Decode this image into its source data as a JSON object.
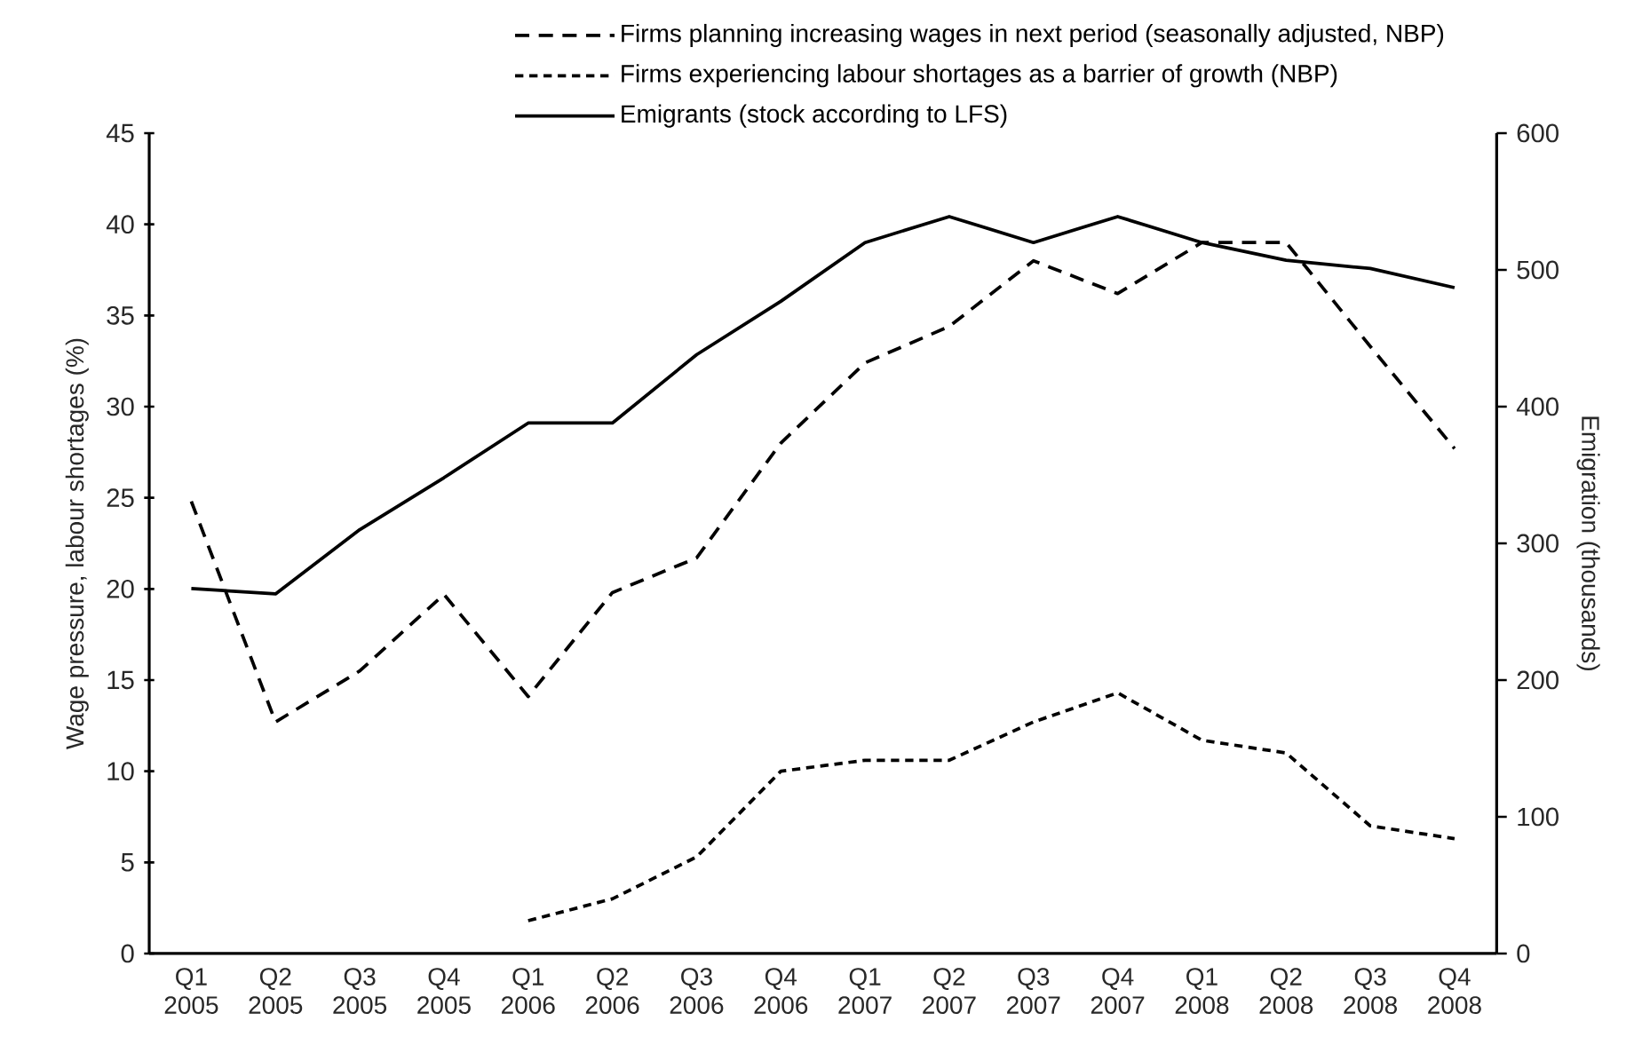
{
  "chart_data": {
    "type": "line",
    "ylabel": "Wage pressure, labour shortages (%)",
    "y2label": "Emigration (thousands)",
    "categories": [
      "Q1 2005",
      "Q2 2005",
      "Q3 2005",
      "Q4 2005",
      "Q1 2006",
      "Q2 2006",
      "Q3 2006",
      "Q4 2006",
      "Q1 2007",
      "Q2 2007",
      "Q3 2007",
      "Q4 2007",
      "Q1 2008",
      "Q2 2008",
      "Q3 2008",
      "Q4 2008"
    ],
    "series": [
      {
        "name": "Firms planning increasing wages in next period (seasonally adjusted, NBP)",
        "color": "#000000",
        "line_style": "dashed",
        "values": [
          24.8,
          12.7,
          15.5,
          19.7,
          14.1,
          19.8,
          21.7,
          28.0,
          32.4,
          34.4,
          38.0,
          36.2,
          39.0,
          39.0,
          33.3,
          27.7
        ]
      },
      {
        "name": "Firms experiencing labour shortages as a barrier of growth (NBP)",
        "color": "#000000",
        "line_style": "dashed",
        "values": [
          null,
          null,
          null,
          null,
          1.8,
          3.0,
          5.3,
          10.0,
          10.6,
          10.6,
          12.7,
          14.3,
          11.7,
          11.0,
          7.0,
          6.3
        ]
      },
      {
        "name": "Emigrants (stock according to LFS)",
        "color": "#000000",
        "line_style": "solid",
        "axis": "y2",
        "values": [
          267,
          263,
          310,
          348,
          388,
          388,
          438,
          477,
          520,
          539,
          520,
          539,
          520,
          507,
          501,
          487
        ]
      }
    ],
    "ylim": [
      0,
      45
    ],
    "yticks": [
      0,
      5,
      10,
      15,
      20,
      25,
      30,
      35,
      40,
      45
    ],
    "y2lim": [
      0,
      600
    ],
    "y2ticks": [
      0,
      100,
      200,
      300,
      400,
      500,
      600
    ],
    "grid": false,
    "legend": "top",
    "marker": "none"
  }
}
